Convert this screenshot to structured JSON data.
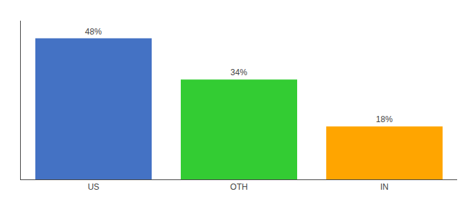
{
  "chart_data": {
    "type": "bar",
    "categories": [
      "US",
      "OTH",
      "IN"
    ],
    "values": [
      48,
      34,
      18
    ],
    "value_labels": [
      "48%",
      "34%",
      "18%"
    ],
    "colors": [
      "#4472C4",
      "#33CC33",
      "#FFA500"
    ],
    "data_labels": true,
    "ylim": [
      0,
      54
    ],
    "grid": false,
    "tick_labels": "x"
  }
}
